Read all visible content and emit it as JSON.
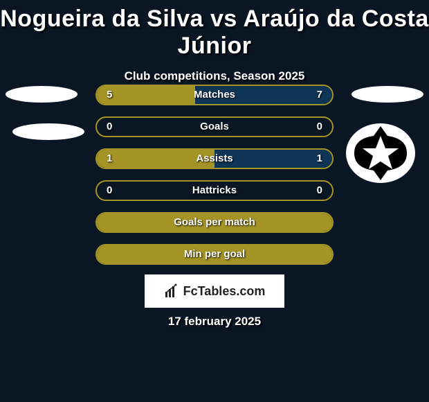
{
  "title": "Nogueira da Silva vs Araújo da Costa Júnior",
  "subtitle": "Club competitions, Season 2025",
  "date": "17 february 2025",
  "footer_brand": "FcTables.com",
  "colors": {
    "left": "#a49426",
    "right": "#0e3456",
    "border_left": "#a49426",
    "full_left": "#a49426"
  },
  "rows": [
    {
      "label": "Matches",
      "left": "5",
      "right": "7",
      "left_pct": 41.7,
      "right_pct": 58.3,
      "left_color": "#a49426",
      "right_color": "#0e3456",
      "border_color": "#a49426"
    },
    {
      "label": "Goals",
      "left": "0",
      "right": "0",
      "left_pct": 0,
      "right_pct": 0,
      "left_color": "#a49426",
      "right_color": "#0e3456",
      "border_color": "#a49426"
    },
    {
      "label": "Assists",
      "left": "1",
      "right": "1",
      "left_pct": 50,
      "right_pct": 50,
      "left_color": "#a49426",
      "right_color": "#0e3456",
      "border_color": "#a49426"
    },
    {
      "label": "Hattricks",
      "left": "0",
      "right": "0",
      "left_pct": 0,
      "right_pct": 0,
      "left_color": "#a49426",
      "right_color": "#0e3456",
      "border_color": "#a49426"
    },
    {
      "label": "Goals per match",
      "left": "",
      "right": "",
      "left_pct": 100,
      "right_pct": 0,
      "left_color": "#a49426",
      "right_color": "#0e3456",
      "border_color": "#a49426"
    },
    {
      "label": "Min per goal",
      "left": "",
      "right": "",
      "left_pct": 100,
      "right_pct": 0,
      "left_color": "#a49426",
      "right_color": "#0e3456",
      "border_color": "#a49426"
    }
  ],
  "club_right_icon": "botafogo-star"
}
